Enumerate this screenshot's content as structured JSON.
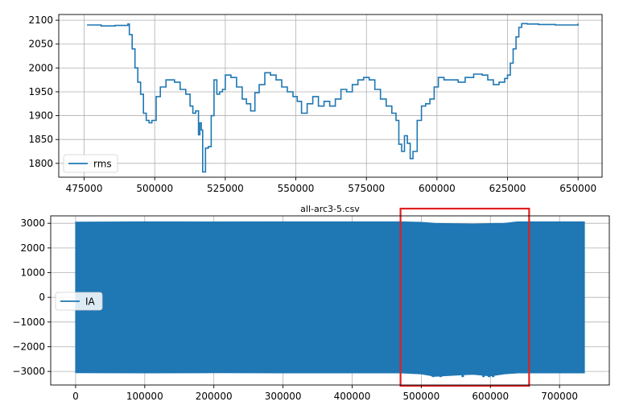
{
  "colors": {
    "series": "#1f77b4",
    "highlight": "#e02020",
    "grid": "#b0b0b0"
  },
  "chart_data": [
    {
      "type": "line",
      "title": "",
      "xlabel": "",
      "ylabel": "",
      "xlim": [
        466000,
        658500
      ],
      "ylim": [
        1771,
        2112
      ],
      "xticks": [
        475000,
        500000,
        525000,
        550000,
        575000,
        600000,
        625000,
        650000
      ],
      "xtick_labels": [
        "475000",
        "500000",
        "525000",
        "550000",
        "575000",
        "600000",
        "625000",
        "650000"
      ],
      "yticks": [
        1800,
        1850,
        1900,
        1950,
        2000,
        2050,
        2100
      ],
      "ytick_labels": [
        "1800",
        "1850",
        "1900",
        "1950",
        "2000",
        "2050",
        "2100"
      ],
      "grid": true,
      "legend": "lower-left",
      "series": [
        {
          "name": "rms",
          "x": [
            476000,
            481000,
            486000,
            490500,
            491000,
            492000,
            493000,
            494000,
            495000,
            496000,
            497000,
            498000,
            499000,
            500500,
            502000,
            504000,
            507000,
            509000,
            511000,
            512500,
            513500,
            514500,
            515500,
            516000,
            516500,
            517000,
            518000,
            519000,
            520000,
            521000,
            522000,
            523000,
            524000,
            525000,
            527000,
            529000,
            531000,
            532500,
            534000,
            535500,
            537000,
            539000,
            541000,
            543000,
            545000,
            547000,
            549000,
            550500,
            552000,
            554000,
            556000,
            558000,
            560000,
            562000,
            564000,
            566000,
            568000,
            570000,
            572000,
            574000,
            576000,
            578000,
            580000,
            582000,
            584000,
            585500,
            586500,
            587500,
            588500,
            589500,
            590500,
            591500,
            593000,
            594500,
            596000,
            597500,
            599000,
            600500,
            602500,
            605000,
            607500,
            610000,
            613000,
            616000,
            618000,
            620000,
            622000,
            624000,
            625000,
            626000,
            627000,
            628000,
            629000,
            630000,
            632000,
            636000,
            642000,
            650000
          ],
          "y": [
            2090,
            2088,
            2089,
            2092,
            2070,
            2040,
            2000,
            1970,
            1945,
            1905,
            1890,
            1885,
            1890,
            1940,
            1960,
            1975,
            1970,
            1955,
            1945,
            1920,
            1905,
            1910,
            1860,
            1885,
            1870,
            1782,
            1832,
            1835,
            1900,
            1975,
            1945,
            1950,
            1955,
            1985,
            1980,
            1960,
            1935,
            1925,
            1910,
            1948,
            1965,
            1990,
            1985,
            1975,
            1960,
            1950,
            1940,
            1930,
            1905,
            1925,
            1940,
            1920,
            1930,
            1920,
            1935,
            1955,
            1950,
            1965,
            1975,
            1980,
            1975,
            1955,
            1935,
            1920,
            1905,
            1890,
            1840,
            1825,
            1858,
            1842,
            1810,
            1825,
            1890,
            1920,
            1925,
            1935,
            1960,
            1980,
            1975,
            1975,
            1970,
            1980,
            1987,
            1985,
            1975,
            1965,
            1970,
            1978,
            1985,
            2010,
            2040,
            2065,
            2085,
            2093,
            2092,
            2091,
            2090,
            2093
          ]
        }
      ]
    },
    {
      "type": "line",
      "title": "all-arc3-5.csv",
      "xlabel": "",
      "ylabel": "",
      "xlim": [
        -36000,
        772000
      ],
      "ylim": [
        -3550,
        3300
      ],
      "xticks": [
        0,
        100000,
        200000,
        300000,
        400000,
        500000,
        600000,
        700000
      ],
      "xtick_labels": [
        "0",
        "100000",
        "200000",
        "300000",
        "400000",
        "500000",
        "600000",
        "700000"
      ],
      "yticks": [
        -3000,
        -2000,
        -1000,
        0,
        1000,
        2000,
        3000
      ],
      "ytick_labels": [
        "−3000",
        "−2000",
        "−1000",
        "0",
        "1000",
        "2000",
        "3000"
      ],
      "grid": true,
      "legend": "center-left",
      "series": [
        {
          "name": "IA",
          "x_range": [
            0,
            736000
          ],
          "envelope_x": [
            0,
            100000,
            200000,
            300000,
            400000,
            470000,
            500000,
            520000,
            550000,
            575000,
            600000,
            620000,
            640000,
            700000,
            736000
          ],
          "envelope_upper": [
            3050,
            3060,
            3055,
            3060,
            3060,
            3060,
            3040,
            3000,
            2980,
            2970,
            2990,
            3000,
            3060,
            3060,
            3060
          ],
          "envelope_lower": [
            -3050,
            -3060,
            -3055,
            -3060,
            -3060,
            -3060,
            -3100,
            -3200,
            -3150,
            -3120,
            -3180,
            -3100,
            -3060,
            -3060,
            -3060
          ]
        }
      ],
      "annotations": [
        {
          "type": "rectangle",
          "color": "#e02020",
          "x_range": [
            470000,
            656000
          ],
          "y_range": [
            -3550,
            3300
          ]
        }
      ]
    }
  ]
}
